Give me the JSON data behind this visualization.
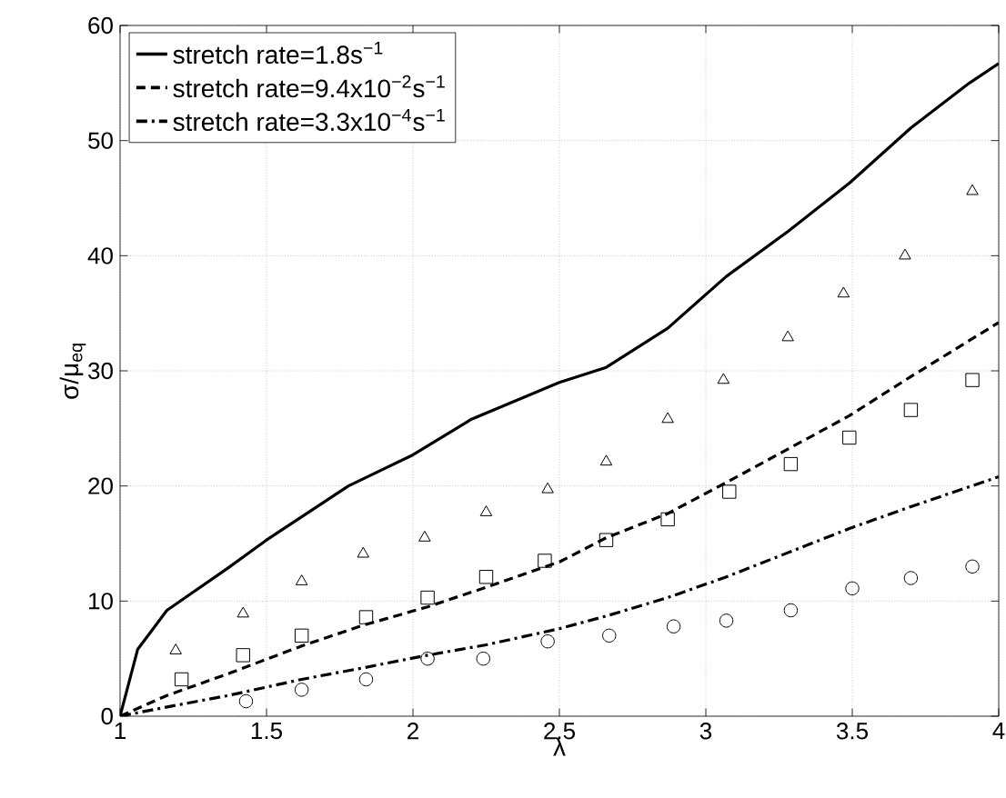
{
  "chart_data": {
    "type": "line",
    "xlabel": "λ",
    "ylabel": "σ/μ$_{eq}$",
    "xlim": [
      1,
      4
    ],
    "ylim": [
      0,
      60
    ],
    "xticks": [
      1,
      1.5,
      2,
      2.5,
      3,
      3.5,
      4
    ],
    "yticks": [
      0,
      10,
      20,
      30,
      40,
      50,
      60
    ],
    "grid": true,
    "legend": "top left",
    "series": [
      {
        "name": "stretch rate=1.8s$^{−1}$",
        "color": "#000000",
        "line_style": "solid",
        "marker": "none",
        "x": [
          1,
          1.06,
          1.16,
          1.37,
          1.5,
          1.78,
          2.0,
          2.2,
          2.5,
          2.66,
          2.87,
          3.07,
          3.28,
          3.49,
          3.7,
          3.9,
          4.0
        ],
        "values": [
          0,
          5.8,
          9.2,
          12.9,
          15.3,
          20,
          22.7,
          25.8,
          29,
          30.3,
          33.7,
          38.2,
          42.1,
          46.3,
          51.1,
          55,
          56.7
        ]
      },
      {
        "name": "stretch rate=9.4x10$^{−2}$s$^{−1}$",
        "color": "#000000",
        "line_style": "dashed",
        "marker": "none",
        "x": [
          1,
          1.16,
          1.37,
          1.62,
          1.83,
          2.05,
          2.25,
          2.5,
          2.66,
          2.87,
          3.07,
          3.28,
          3.49,
          3.7,
          4.0
        ],
        "values": [
          0,
          1.8,
          3.7,
          6.1,
          7.9,
          9.5,
          11.2,
          13.4,
          15.5,
          17.6,
          20.3,
          23.2,
          26.1,
          29.5,
          34.2
        ]
      },
      {
        "name": "stretch rate=3.3x10$^{−4}$s$^{−1}$",
        "color": "#000000",
        "line_style": "dashdot",
        "marker": "none",
        "x": [
          1,
          1.16,
          1.37,
          1.62,
          1.83,
          2.05,
          2.25,
          2.5,
          2.66,
          2.87,
          3.07,
          3.28,
          3.49,
          3.7,
          4.0
        ],
        "values": [
          0,
          0.8,
          1.8,
          3.2,
          4.2,
          5.3,
          6.2,
          7.6,
          8.7,
          10.3,
          12.1,
          14.2,
          16.3,
          18.2,
          20.8
        ]
      },
      {
        "type": "scatter",
        "color": "#000000",
        "marker": "triangle",
        "x": [
          1.19,
          1.42,
          1.62,
          1.83,
          2.04,
          2.25,
          2.46,
          2.66,
          2.87,
          3.06,
          3.28,
          3.47,
          3.68,
          3.91
        ],
        "values": [
          5.7,
          8.9,
          11.7,
          14.1,
          15.5,
          17.7,
          19.7,
          22.1,
          25.8,
          29.2,
          32.9,
          36.7,
          40.0,
          45.6
        ]
      },
      {
        "type": "scatter",
        "color": "#000000",
        "marker": "square",
        "x": [
          1.21,
          1.42,
          1.62,
          1.84,
          2.05,
          2.25,
          2.45,
          2.66,
          2.87,
          3.08,
          3.29,
          3.49,
          3.7,
          3.91
        ],
        "values": [
          3.2,
          5.3,
          7.0,
          8.6,
          10.3,
          12.1,
          13.5,
          15.3,
          17.1,
          19.5,
          21.9,
          24.2,
          26.6,
          29.2
        ]
      },
      {
        "type": "scatter",
        "color": "#000000",
        "marker": "circle",
        "x": [
          1.43,
          1.62,
          1.84,
          2.05,
          2.24,
          2.46,
          2.67,
          2.89,
          3.07,
          3.29,
          3.5,
          3.7,
          3.91
        ],
        "values": [
          1.3,
          2.3,
          3.2,
          5.0,
          5.0,
          6.5,
          7.0,
          7.8,
          8.3,
          9.2,
          11.1,
          12.0,
          13.0
        ]
      }
    ]
  }
}
